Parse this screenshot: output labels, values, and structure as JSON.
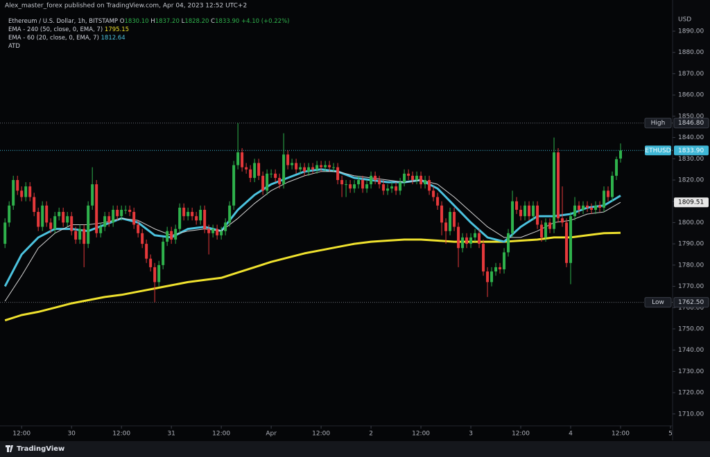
{
  "header": {
    "publisher": "Alex_master_forex published on TradingView.com, Apr 04, 2023 12:52 UTC+2",
    "footer": "TradingView"
  },
  "chart_data": {
    "type": "candlestick",
    "axis_label": "USD",
    "xlim": [
      6.8,
      168.5
    ],
    "ylim": [
      1704.4,
      1898.8
    ],
    "grid": false,
    "xticks": [
      {
        "value": 12,
        "label": "12:00"
      },
      {
        "value": 24,
        "label": "30"
      },
      {
        "value": 36,
        "label": "12:00"
      },
      {
        "value": 48,
        "label": "31"
      },
      {
        "value": 60,
        "label": "12:00"
      },
      {
        "value": 72,
        "label": "Apr"
      },
      {
        "value": 84,
        "label": "12:00"
      },
      {
        "value": 96,
        "label": "2"
      },
      {
        "value": 108,
        "label": "12:00"
      },
      {
        "value": 120,
        "label": "3"
      },
      {
        "value": 132,
        "label": "12:00"
      },
      {
        "value": 144,
        "label": "4"
      },
      {
        "value": 156,
        "label": "12:00"
      },
      {
        "value": 168,
        "label": "5"
      }
    ],
    "yticks": [
      {
        "value": 1710,
        "label": "1710.00"
      },
      {
        "value": 1720,
        "label": "1720.00"
      },
      {
        "value": 1730,
        "label": "1730.00"
      },
      {
        "value": 1740,
        "label": "1740.00"
      },
      {
        "value": 1750,
        "label": "1750.00"
      },
      {
        "value": 1760,
        "label": "1760.00"
      },
      {
        "value": 1770,
        "label": "1770.00"
      },
      {
        "value": 1780,
        "label": "1780.00"
      },
      {
        "value": 1790,
        "label": "1790.00"
      },
      {
        "value": 1800,
        "label": "1800.00"
      },
      {
        "value": 1810,
        "label": "1810.00"
      },
      {
        "value": 1820,
        "label": "1820.00"
      },
      {
        "value": 1830,
        "label": "1830.00"
      },
      {
        "value": 1840,
        "label": "1840.00"
      },
      {
        "value": 1850,
        "label": "1850.00"
      },
      {
        "value": 1860,
        "label": "1860.00"
      },
      {
        "value": 1870,
        "label": "1870.00"
      },
      {
        "value": 1880,
        "label": "1880.00"
      },
      {
        "value": 1890,
        "label": "1890.00"
      }
    ],
    "series": [
      {
        "name": "Ethereum / U.S. Dollar, 1h, BITSTAMP",
        "type": "candlestick",
        "up_color": "#2fb24c",
        "down_color": "#e5393b",
        "legend_values": [
          {
            "label": "O",
            "value": "1830.10"
          },
          {
            "label": "H",
            "value": "1837.20"
          },
          {
            "label": "L",
            "value": "1828.20"
          },
          {
            "label": "C",
            "value": "1833.90"
          }
        ],
        "change": "+4.10 (+0.22%)",
        "x": [
          8,
          9,
          10,
          11,
          12,
          13,
          14,
          15,
          16,
          17,
          18,
          19,
          20,
          21,
          22,
          23,
          24,
          25,
          26,
          27,
          28,
          29,
          30,
          31,
          32,
          33,
          34,
          35,
          36,
          37,
          38,
          39,
          40,
          41,
          42,
          43,
          44,
          45,
          46,
          47,
          48,
          49,
          50,
          51,
          52,
          53,
          54,
          55,
          56,
          57,
          58,
          59,
          60,
          61,
          62,
          63,
          64,
          65,
          66,
          67,
          68,
          69,
          70,
          71,
          72,
          73,
          74,
          75,
          76,
          77,
          78,
          79,
          80,
          81,
          82,
          83,
          84,
          85,
          86,
          87,
          88,
          89,
          90,
          91,
          92,
          93,
          94,
          95,
          96,
          97,
          98,
          99,
          100,
          101,
          102,
          103,
          104,
          105,
          106,
          107,
          108,
          109,
          110,
          111,
          112,
          113,
          114,
          115,
          116,
          117,
          118,
          119,
          120,
          121,
          122,
          123,
          124,
          125,
          126,
          127,
          128,
          129,
          130,
          131,
          132,
          133,
          134,
          135,
          136,
          137,
          138,
          139,
          140,
          141,
          142,
          143,
          144,
          145,
          146,
          147,
          148,
          149,
          150,
          151,
          152,
          153,
          154,
          155,
          156
        ],
        "open": [
          1790,
          1800,
          1808,
          1820,
          1815,
          1812,
          1817,
          1812,
          1805,
          1798,
          1808,
          1800,
          1797,
          1803,
          1805,
          1800,
          1803,
          1796,
          1792,
          1797,
          1790,
          1808,
          1818,
          1795,
          1798,
          1803,
          1800,
          1806,
          1803,
          1806,
          1806,
          1805,
          1799,
          1795,
          1790,
          1783,
          1779,
          1772,
          1780,
          1791,
          1796,
          1792,
          1797,
          1807,
          1803,
          1805,
          1803,
          1801,
          1806,
          1797,
          1795,
          1797,
          1794,
          1796,
          1800,
          1808,
          1827,
          1833,
          1826,
          1825,
          1821,
          1828,
          1822,
          1815,
          1823,
          1823,
          1821,
          1818,
          1832,
          1827,
          1828,
          1825,
          1826,
          1824,
          1826,
          1825,
          1827,
          1826,
          1827,
          1826,
          1826,
          1820,
          1818,
          1818,
          1816,
          1818,
          1820,
          1816,
          1818,
          1822,
          1820,
          1818,
          1815,
          1816,
          1817,
          1815,
          1819,
          1823,
          1822,
          1820,
          1822,
          1818,
          1820,
          1815,
          1812,
          1808,
          1800,
          1796,
          1805,
          1798,
          1788,
          1793,
          1790,
          1793,
          1795,
          1790,
          1777,
          1772,
          1777,
          1779,
          1778,
          1786,
          1795,
          1810,
          1806,
          1803,
          1808,
          1803,
          1808,
          1799,
          1793,
          1800,
          1797,
          1833,
          1802,
          1800,
          1781,
          1803,
          1808,
          1806,
          1808,
          1807,
          1806,
          1808,
          1807,
          1815,
          1812,
          1822,
          1830.1
        ],
        "high": [
          1802,
          1810,
          1822,
          1822,
          1817,
          1819,
          1819,
          1814,
          1807,
          1810,
          1810,
          1802,
          1805,
          1807,
          1807,
          1805,
          1805,
          1798,
          1799,
          1799,
          1810,
          1826,
          1820,
          1800,
          1805,
          1805,
          1808,
          1808,
          1808,
          1808,
          1808,
          1807,
          1801,
          1797,
          1792,
          1785,
          1781,
          1782,
          1793,
          1798,
          1798,
          1799,
          1809,
          1809,
          1807,
          1807,
          1805,
          1808,
          1808,
          1799,
          1799,
          1799,
          1798,
          1802,
          1810,
          1829,
          1846.8,
          1835,
          1828,
          1827,
          1830,
          1830,
          1824,
          1825,
          1825,
          1825,
          1823,
          1842,
          1834,
          1830,
          1830,
          1828,
          1828,
          1828,
          1828,
          1829,
          1829,
          1829,
          1829,
          1828,
          1828,
          1822,
          1820,
          1820,
          1820,
          1822,
          1822,
          1820,
          1824,
          1824,
          1822,
          1820,
          1818,
          1819,
          1819,
          1821,
          1825,
          1825,
          1824,
          1824,
          1824,
          1822,
          1822,
          1817,
          1814,
          1810,
          1802,
          1807,
          1807,
          1800,
          1795,
          1795,
          1795,
          1797,
          1797,
          1792,
          1779,
          1779,
          1781,
          1781,
          1788,
          1797,
          1815,
          1812,
          1808,
          1810,
          1810,
          1810,
          1810,
          1801,
          1802,
          1802,
          1840,
          1835,
          1817,
          1802,
          1805,
          1812,
          1810,
          1810,
          1810,
          1809,
          1810,
          1810,
          1817,
          1817,
          1824,
          1831,
          1837.2
        ],
        "low": [
          1788,
          1798,
          1806,
          1813,
          1810,
          1810,
          1810,
          1803,
          1796,
          1796,
          1798,
          1795,
          1795,
          1801,
          1798,
          1798,
          1794,
          1790,
          1790,
          1779,
          1788,
          1806,
          1793,
          1793,
          1796,
          1798,
          1798,
          1801,
          1801,
          1804,
          1803,
          1797,
          1793,
          1788,
          1781,
          1777,
          1762.5,
          1770,
          1778,
          1789,
          1790,
          1790,
          1795,
          1801,
          1801,
          1801,
          1799,
          1799,
          1795,
          1785,
          1793,
          1792,
          1792,
          1794,
          1798,
          1806,
          1825,
          1824,
          1823,
          1819,
          1819,
          1820,
          1813,
          1813,
          1821,
          1819,
          1816,
          1816,
          1825,
          1825,
          1823,
          1823,
          1822,
          1822,
          1823,
          1823,
          1824,
          1824,
          1824,
          1824,
          1818,
          1812,
          1812,
          1814,
          1814,
          1816,
          1814,
          1814,
          1816,
          1818,
          1816,
          1813,
          1813,
          1814,
          1813,
          1813,
          1817,
          1820,
          1818,
          1818,
          1816,
          1816,
          1813,
          1810,
          1806,
          1794,
          1790,
          1794,
          1796,
          1779,
          1786,
          1788,
          1788,
          1791,
          1788,
          1775,
          1765,
          1770,
          1775,
          1776,
          1776,
          1784,
          1793,
          1804,
          1801,
          1801,
          1801,
          1801,
          1797,
          1791,
          1791,
          1795,
          1795,
          1800,
          1798,
          1779,
          1771,
          1801,
          1804,
          1804,
          1805,
          1804,
          1804,
          1805,
          1805,
          1810,
          1810,
          1820,
          1828.2
        ],
        "close": [
          1800,
          1808,
          1820,
          1815,
          1812,
          1817,
          1812,
          1805,
          1798,
          1808,
          1800,
          1797,
          1803,
          1805,
          1800,
          1803,
          1796,
          1792,
          1797,
          1790,
          1808,
          1818,
          1795,
          1798,
          1803,
          1800,
          1806,
          1803,
          1806,
          1806,
          1805,
          1799,
          1795,
          1790,
          1783,
          1779,
          1772,
          1780,
          1791,
          1796,
          1792,
          1797,
          1807,
          1803,
          1805,
          1803,
          1801,
          1806,
          1797,
          1795,
          1797,
          1794,
          1796,
          1800,
          1808,
          1827,
          1833,
          1826,
          1825,
          1821,
          1828,
          1822,
          1815,
          1823,
          1823,
          1821,
          1818,
          1832,
          1827,
          1828,
          1825,
          1826,
          1824,
          1826,
          1825,
          1827,
          1826,
          1827,
          1826,
          1826,
          1820,
          1818,
          1818,
          1816,
          1818,
          1820,
          1816,
          1818,
          1822,
          1820,
          1818,
          1815,
          1816,
          1817,
          1815,
          1819,
          1823,
          1822,
          1820,
          1822,
          1818,
          1820,
          1815,
          1812,
          1808,
          1800,
          1796,
          1805,
          1798,
          1788,
          1793,
          1790,
          1793,
          1795,
          1790,
          1777,
          1772,
          1777,
          1779,
          1778,
          1786,
          1795,
          1810,
          1806,
          1803,
          1808,
          1803,
          1808,
          1799,
          1793,
          1800,
          1797,
          1833,
          1802,
          1800,
          1781,
          1803,
          1808,
          1806,
          1808,
          1807,
          1806,
          1808,
          1807,
          1815,
          1812,
          1822,
          1829.8,
          1833.9
        ]
      },
      {
        "name": "EMA - 240 (50, close, 0, EMA, 7)",
        "type": "line",
        "color": "#f0e22e",
        "width": 3,
        "legend_value": "1795.15",
        "x": [
          8,
          12,
          16,
          20,
          24,
          28,
          32,
          36,
          40,
          44,
          48,
          52,
          56,
          60,
          64,
          68,
          72,
          76,
          80,
          84,
          88,
          92,
          96,
          100,
          104,
          108,
          112,
          116,
          120,
          124,
          128,
          132,
          136,
          140,
          144,
          148,
          152,
          156
        ],
        "values": [
          1754,
          1756.5,
          1758,
          1760,
          1762,
          1763.5,
          1765,
          1766,
          1767.5,
          1769,
          1770.5,
          1772,
          1773,
          1774,
          1776.5,
          1779,
          1781.5,
          1783.5,
          1785.5,
          1787,
          1788.5,
          1790,
          1791,
          1791.5,
          1792,
          1792,
          1791.5,
          1791,
          1791,
          1791,
          1791,
          1791.5,
          1792,
          1793,
          1793,
          1794,
          1795,
          1795.15
        ]
      },
      {
        "name": "EMA - 60 (20, close, 0, EMA, 7)",
        "type": "line",
        "color": "#4cc3df",
        "width": 3,
        "legend_value": "1812.64",
        "x": [
          8,
          12,
          16,
          20,
          24,
          28,
          32,
          36,
          40,
          44,
          48,
          52,
          56,
          60,
          64,
          68,
          72,
          76,
          80,
          84,
          88,
          92,
          96,
          100,
          104,
          108,
          112,
          116,
          120,
          124,
          128,
          132,
          136,
          140,
          144,
          148,
          152,
          156
        ],
        "values": [
          1770,
          1785,
          1793,
          1797,
          1797,
          1796,
          1799,
          1802,
          1800,
          1794,
          1793,
          1797,
          1798,
          1796,
          1806,
          1813,
          1818,
          1821,
          1824,
          1825,
          1824,
          1821,
          1820,
          1819,
          1819,
          1820,
          1816,
          1808,
          1800,
          1793,
          1791,
          1798,
          1803,
          1803,
          1804,
          1807,
          1808,
          1812.64
        ]
      },
      {
        "name": "ATD",
        "type": "line",
        "color": "#d6d6d6",
        "width": 1,
        "x": [
          8,
          12,
          16,
          20,
          24,
          28,
          32,
          36,
          40,
          44,
          48,
          52,
          56,
          60,
          64,
          68,
          72,
          76,
          80,
          84,
          88,
          92,
          96,
          100,
          104,
          108,
          112,
          116,
          120,
          124,
          128,
          132,
          136,
          140,
          144,
          148,
          152,
          156
        ],
        "values": [
          1763,
          1775,
          1788,
          1795,
          1799,
          1799,
          1800,
          1802,
          1801,
          1797,
          1794,
          1796,
          1797,
          1796,
          1802,
          1809,
          1815,
          1819,
          1822,
          1824,
          1824,
          1822,
          1821,
          1820,
          1819,
          1820,
          1818,
          1812,
          1805,
          1798,
          1793,
          1793,
          1796,
          1800,
          1801,
          1804,
          1805,
          1809.51
        ]
      }
    ],
    "price_labels": [
      {
        "name": "High",
        "value": 1846.8,
        "label": "1846.80",
        "color": "#1a1d24",
        "text_color": "#d1d4dc",
        "line": true
      },
      {
        "name": "ETHUSD",
        "value": 1833.9,
        "label": "1833.90",
        "color": "#3fb7d6",
        "text_color": "#ffffff",
        "line": true
      },
      {
        "value": 1809.51,
        "label": "1809.51",
        "color": "#e8e8e8",
        "text_color": "#000000",
        "line": false
      },
      {
        "name": "Low",
        "value": 1762.5,
        "label": "1762.50",
        "color": "#1a1d24",
        "text_color": "#d1d4dc",
        "line": true
      }
    ]
  }
}
